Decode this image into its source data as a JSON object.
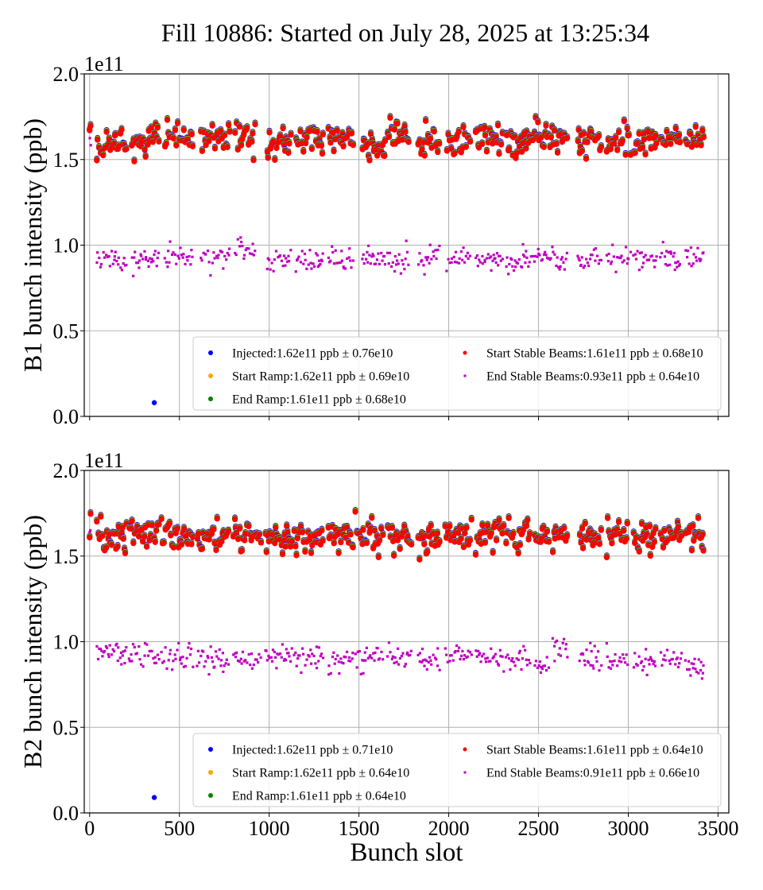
{
  "chart_data": [
    {
      "type": "scatter",
      "title": "Fill 10886: Started on July 28, 2025 at 13:25:34",
      "xlabel": "",
      "ylabel": "B1 bunch intensity (ppb)",
      "y_offset_label": "1e11",
      "xlim": [
        -30,
        3560
      ],
      "ylim": [
        0.0,
        2.0
      ],
      "x_ticks": [
        0,
        500,
        1000,
        1500,
        2000,
        2500,
        3000,
        3500
      ],
      "x_tick_labels_visible": false,
      "y_ticks": [
        0.0,
        0.5,
        1.0,
        1.5,
        2.0
      ],
      "y_tick_labels": [
        "0.0",
        "0.5",
        "1.0",
        "1.5",
        "2.0"
      ],
      "grid": true,
      "legend_position": "lower-right",
      "series": [
        {
          "name": "Injected",
          "label": "Injected:1.62e11 ppb ± 0.76e10",
          "color": "#0000ff",
          "mean": 1.62,
          "std": 0.076
        },
        {
          "name": "Start Ramp",
          "label": "Start Ramp:1.62e11 ppb ± 0.69e10",
          "color": "#ffa500",
          "mean": 1.62,
          "std": 0.069
        },
        {
          "name": "End Ramp",
          "label": "End Ramp:1.61e11 ppb ± 0.68e10",
          "color": "#008000",
          "mean": 1.61,
          "std": 0.068
        },
        {
          "name": "Start Stable Beams",
          "label": "Start Stable Beams:1.61e11 ppb ± 0.68e10",
          "color": "#ff0000",
          "mean": 1.61,
          "std": 0.068
        },
        {
          "name": "End Stable Beams",
          "label": "End Stable Beams:0.93e11 ppb ± 0.64e10",
          "color": "#bf00bf",
          "mean": 0.93,
          "std": 0.064
        }
      ],
      "outliers": [
        {
          "series": "Injected",
          "x": 360,
          "y": 0.08
        }
      ],
      "trains": [
        {
          "x": [
            0,
            12
          ],
          "start": 1.66,
          "end": 1.64
        },
        {
          "x": [
            40,
            210
          ],
          "start": 1.59,
          "end": 0.91
        },
        {
          "x": [
            235,
            390
          ],
          "start": 1.61,
          "end": 0.92
        },
        {
          "x": [
            420,
            580
          ],
          "start": 1.62,
          "end": 0.93
        },
        {
          "x": [
            620,
            780
          ],
          "start": 1.62,
          "end": 0.93
        },
        {
          "x": [
            810,
            930
          ],
          "start": 1.61,
          "end": 0.98
        },
        {
          "x": [
            990,
            1130
          ],
          "start": 1.6,
          "end": 0.92
        },
        {
          "x": [
            1150,
            1300
          ],
          "start": 1.61,
          "end": 0.91
        },
        {
          "x": [
            1330,
            1470
          ],
          "start": 1.62,
          "end": 0.92
        },
        {
          "x": [
            1520,
            1650
          ],
          "start": 1.59,
          "end": 0.93
        },
        {
          "x": [
            1660,
            1780
          ],
          "start": 1.62,
          "end": 0.92
        },
        {
          "x": [
            1830,
            1950
          ],
          "start": 1.6,
          "end": 0.93
        },
        {
          "x": [
            1990,
            2120
          ],
          "start": 1.59,
          "end": 0.91
        },
        {
          "x": [
            2150,
            2300
          ],
          "start": 1.62,
          "end": 0.92
        },
        {
          "x": [
            2320,
            2450
          ],
          "start": 1.6,
          "end": 0.91
        },
        {
          "x": [
            2460,
            2590
          ],
          "start": 1.63,
          "end": 0.93
        },
        {
          "x": [
            2600,
            2660
          ],
          "start": 1.62,
          "end": 0.91
        },
        {
          "x": [
            2720,
            2850
          ],
          "start": 1.61,
          "end": 0.92
        },
        {
          "x": [
            2880,
            3020
          ],
          "start": 1.62,
          "end": 0.93
        },
        {
          "x": [
            3030,
            3160
          ],
          "start": 1.61,
          "end": 0.93
        },
        {
          "x": [
            3180,
            3290
          ],
          "start": 1.62,
          "end": 0.92
        },
        {
          "x": [
            3320,
            3420
          ],
          "start": 1.62,
          "end": 0.94
        }
      ]
    },
    {
      "type": "scatter",
      "title": "",
      "xlabel": "Bunch slot",
      "ylabel": "B2 bunch intensity (ppb)",
      "y_offset_label": "1e11",
      "xlim": [
        -30,
        3560
      ],
      "ylim": [
        0.0,
        2.0
      ],
      "x_ticks": [
        0,
        500,
        1000,
        1500,
        2000,
        2500,
        3000,
        3500
      ],
      "x_tick_labels": [
        "0",
        "500",
        "1000",
        "1500",
        "2000",
        "2500",
        "3000",
        "3500"
      ],
      "x_tick_labels_visible": true,
      "y_ticks": [
        0.0,
        0.5,
        1.0,
        1.5,
        2.0
      ],
      "y_tick_labels": [
        "0.0",
        "0.5",
        "1.0",
        "1.5",
        "2.0"
      ],
      "grid": true,
      "legend_position": "lower-right",
      "series": [
        {
          "name": "Injected",
          "label": "Injected:1.62e11 ppb ± 0.71e10",
          "color": "#0000ff",
          "mean": 1.62,
          "std": 0.071
        },
        {
          "name": "Start Ramp",
          "label": "Start Ramp:1.62e11 ppb ± 0.64e10",
          "color": "#ffa500",
          "mean": 1.62,
          "std": 0.064
        },
        {
          "name": "End Ramp",
          "label": "End Ramp:1.61e11 ppb ± 0.64e10",
          "color": "#008000",
          "mean": 1.61,
          "std": 0.064
        },
        {
          "name": "Start Stable Beams",
          "label": "Start Stable Beams:1.61e11 ppb ± 0.64e10",
          "color": "#ff0000",
          "mean": 1.61,
          "std": 0.064
        },
        {
          "name": "End Stable Beams",
          "label": "End Stable Beams:0.91e11 ppb ± 0.66e10",
          "color": "#bf00bf",
          "mean": 0.91,
          "std": 0.066
        }
      ],
      "outliers": [
        {
          "series": "Injected",
          "x": 360,
          "y": 0.09
        }
      ],
      "trains": [
        {
          "x": [
            0,
            12
          ],
          "start": 1.66,
          "end": 1.62
        },
        {
          "x": [
            40,
            210
          ],
          "start": 1.6,
          "end": 0.94
        },
        {
          "x": [
            220,
            390
          ],
          "start": 1.62,
          "end": 0.92
        },
        {
          "x": [
            400,
            580
          ],
          "start": 1.61,
          "end": 0.91
        },
        {
          "x": [
            600,
            780
          ],
          "start": 1.61,
          "end": 0.89
        },
        {
          "x": [
            800,
            960
          ],
          "start": 1.61,
          "end": 0.9
        },
        {
          "x": [
            980,
            1130
          ],
          "start": 1.6,
          "end": 0.92
        },
        {
          "x": [
            1140,
            1300
          ],
          "start": 1.6,
          "end": 0.91
        },
        {
          "x": [
            1330,
            1470
          ],
          "start": 1.61,
          "end": 0.89
        },
        {
          "x": [
            1480,
            1640
          ],
          "start": 1.61,
          "end": 0.9
        },
        {
          "x": [
            1660,
            1800
          ],
          "start": 1.61,
          "end": 0.91
        },
        {
          "x": [
            1830,
            1950
          ],
          "start": 1.6,
          "end": 0.9
        },
        {
          "x": [
            1980,
            2130
          ],
          "start": 1.62,
          "end": 0.91
        },
        {
          "x": [
            2150,
            2310
          ],
          "start": 1.63,
          "end": 0.9
        },
        {
          "x": [
            2320,
            2460
          ],
          "start": 1.61,
          "end": 0.89
        },
        {
          "x": [
            2480,
            2560
          ],
          "start": 1.62,
          "end": 0.86
        },
        {
          "x": [
            2580,
            2660
          ],
          "start": 1.62,
          "end": 0.96
        },
        {
          "x": [
            2730,
            2850
          ],
          "start": 1.61,
          "end": 0.9
        },
        {
          "x": [
            2880,
            3000
          ],
          "start": 1.61,
          "end": 0.89
        },
        {
          "x": [
            3030,
            3160
          ],
          "start": 1.61,
          "end": 0.88
        },
        {
          "x": [
            3180,
            3300
          ],
          "start": 1.61,
          "end": 0.89
        },
        {
          "x": [
            3320,
            3420
          ],
          "start": 1.61,
          "end": 0.85
        }
      ]
    }
  ]
}
